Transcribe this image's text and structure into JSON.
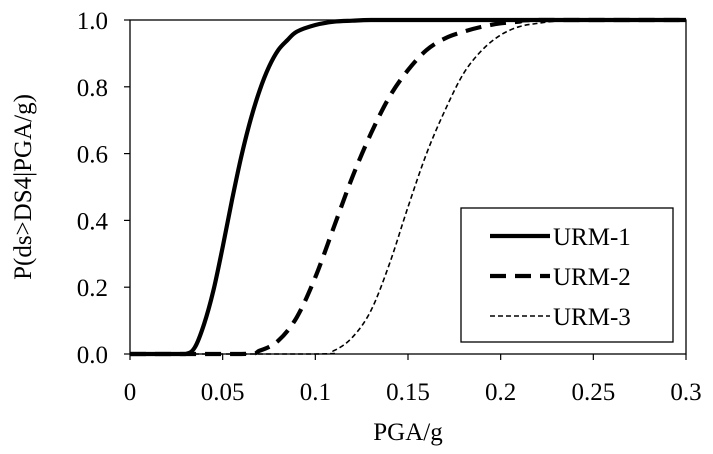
{
  "chart_data": {
    "type": "line",
    "xlabel": "PGA/g",
    "ylabel": "P(ds>DS4|PGA/g)",
    "xlim": [
      0,
      0.3
    ],
    "ylim": [
      0,
      1.0
    ],
    "x_ticks": [
      "0",
      "0.05",
      "0.1",
      "0.15",
      "0.2",
      "0.25",
      "0.3"
    ],
    "y_ticks": [
      "0.0",
      "0.2",
      "0.4",
      "0.6",
      "0.8",
      "1.0"
    ],
    "legend_position": "bottom-right",
    "grid": false,
    "series": [
      {
        "name": "URM-1",
        "style": "solid",
        "x": [
          0,
          0.02,
          0.03,
          0.035,
          0.04,
          0.045,
          0.05,
          0.055,
          0.06,
          0.065,
          0.07,
          0.075,
          0.08,
          0.085,
          0.09,
          0.1,
          0.11,
          0.12,
          0.13,
          0.15,
          0.2,
          0.3
        ],
        "y": [
          0,
          0,
          0,
          0.02,
          0.09,
          0.19,
          0.32,
          0.46,
          0.59,
          0.7,
          0.79,
          0.86,
          0.91,
          0.94,
          0.965,
          0.985,
          0.995,
          0.998,
          1.0,
          1.0,
          1.0,
          1.0
        ]
      },
      {
        "name": "URM-2",
        "style": "dashed",
        "x": [
          0,
          0.06,
          0.07,
          0.08,
          0.09,
          0.1,
          0.11,
          0.12,
          0.13,
          0.14,
          0.15,
          0.16,
          0.17,
          0.18,
          0.19,
          0.2,
          0.21,
          0.22,
          0.3
        ],
        "y": [
          0,
          0,
          0.01,
          0.04,
          0.11,
          0.23,
          0.38,
          0.53,
          0.66,
          0.77,
          0.85,
          0.91,
          0.945,
          0.965,
          0.98,
          0.99,
          0.995,
          1.0,
          1.0
        ]
      },
      {
        "name": "URM-3",
        "style": "dotted",
        "x": [
          0,
          0.1,
          0.11,
          0.12,
          0.13,
          0.14,
          0.15,
          0.16,
          0.17,
          0.18,
          0.19,
          0.2,
          0.21,
          0.22,
          0.23,
          0.24,
          0.3
        ],
        "y": [
          0,
          0,
          0.01,
          0.05,
          0.13,
          0.27,
          0.44,
          0.6,
          0.73,
          0.84,
          0.91,
          0.955,
          0.98,
          0.99,
          0.997,
          1.0,
          1.0
        ]
      }
    ]
  }
}
